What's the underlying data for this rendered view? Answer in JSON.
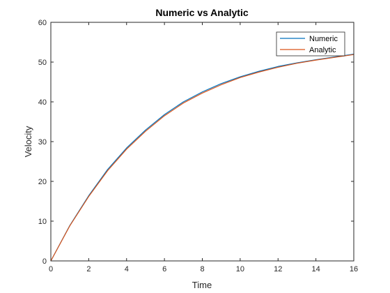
{
  "chart_data": {
    "type": "line",
    "title": "Numeric vs Analytic",
    "xlabel": "Time",
    "ylabel": "Velocity",
    "xlim": [
      0,
      16
    ],
    "ylim": [
      0,
      60
    ],
    "x_ticks": [
      "0",
      "2",
      "4",
      "6",
      "8",
      "10",
      "12",
      "14",
      "16"
    ],
    "y_ticks": [
      "0",
      "10",
      "20",
      "30",
      "40",
      "50",
      "60"
    ],
    "grid": false,
    "legend_position": "top-right",
    "series": [
      {
        "name": "Numeric",
        "color": "#0072BD",
        "x": [
          0,
          1,
          2,
          3,
          4,
          5,
          6,
          7,
          8,
          9,
          10,
          11,
          12,
          13,
          14,
          15,
          16
        ],
        "y": [
          0,
          8.9,
          16.4,
          23.0,
          28.4,
          32.9,
          36.8,
          40.0,
          42.5,
          44.6,
          46.3,
          47.7,
          48.9,
          49.8,
          50.6,
          51.3,
          52.0
        ]
      },
      {
        "name": "Analytic",
        "color": "#D95319",
        "x": [
          0,
          1,
          2,
          3,
          4,
          5,
          6,
          7,
          8,
          9,
          10,
          11,
          12,
          13,
          14,
          15,
          16
        ],
        "y": [
          0,
          8.8,
          16.2,
          22.7,
          28.1,
          32.6,
          36.5,
          39.7,
          42.2,
          44.3,
          46.1,
          47.5,
          48.7,
          49.7,
          50.5,
          51.2,
          51.9
        ]
      }
    ]
  }
}
